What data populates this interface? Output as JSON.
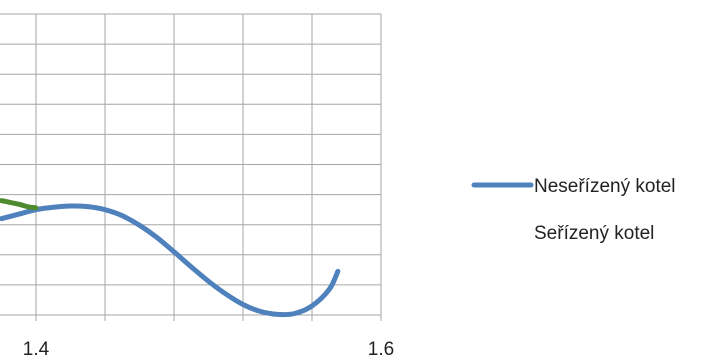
{
  "chart_data": {
    "type": "line",
    "title": "",
    "xlabel": "",
    "ylabel": "",
    "x_ticks": [
      "1.4",
      "1.6"
    ],
    "xlim": [
      1.38,
      1.6
    ],
    "ylim": [
      0,
      10
    ],
    "grid": true,
    "legend_position": "right",
    "series": [
      {
        "name": "Neseřízený kotel",
        "color": "#4f81bd",
        "x": [
          1.38,
          1.39,
          1.4,
          1.41,
          1.42,
          1.43,
          1.44,
          1.45,
          1.46,
          1.47,
          1.48,
          1.49,
          1.5,
          1.51,
          1.52,
          1.53,
          1.54,
          1.55,
          1.56,
          1.57,
          1.575
        ],
        "y": [
          3.2,
          3.35,
          3.5,
          3.58,
          3.62,
          3.6,
          3.5,
          3.3,
          2.98,
          2.58,
          2.1,
          1.6,
          1.12,
          0.7,
          0.35,
          0.12,
          0.02,
          0.05,
          0.3,
          0.85,
          1.45
        ]
      },
      {
        "name": "Seřízený kotel",
        "color": "#4e8a2e",
        "x": [
          1.38,
          1.39,
          1.395,
          1.4
        ],
        "y": [
          3.8,
          3.68,
          3.6,
          3.56
        ]
      }
    ]
  }
}
